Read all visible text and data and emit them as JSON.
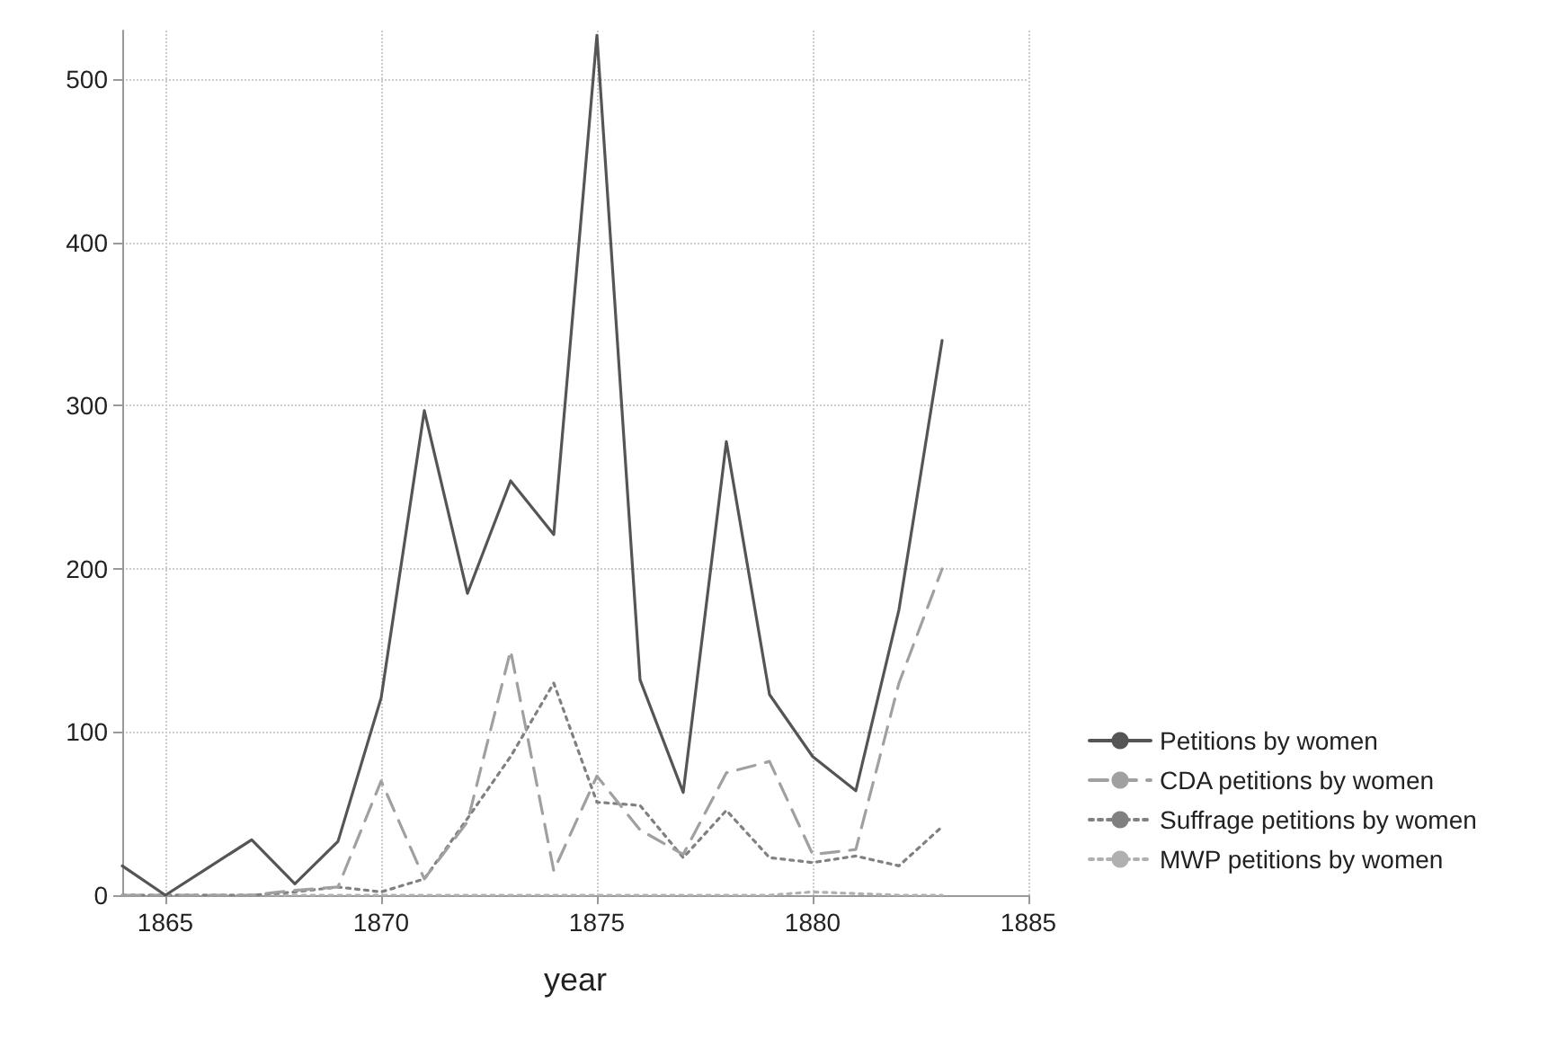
{
  "chart_data": {
    "type": "line",
    "xlabel": "year",
    "x": [
      1864,
      1865,
      1866,
      1867,
      1868,
      1869,
      1870,
      1871,
      1872,
      1873,
      1874,
      1875,
      1876,
      1877,
      1878,
      1879,
      1880,
      1881,
      1882,
      1883
    ],
    "series": [
      {
        "name": "Petitions by women",
        "color": "#555555",
        "line_style": "solid",
        "values": [
          18,
          0,
          17,
          34,
          7,
          33,
          121,
          297,
          185,
          254,
          221,
          527,
          132,
          63,
          278,
          123,
          85,
          64,
          175,
          340
        ]
      },
      {
        "name": "CDA petitions by women",
        "color": "#a0a0a0",
        "line_style": "dashed",
        "values": [
          0,
          0,
          0,
          0,
          3,
          5,
          70,
          10,
          45,
          150,
          15,
          73,
          40,
          25,
          75,
          82,
          25,
          28,
          130,
          200
        ]
      },
      {
        "name": "Suffrage petitions by women",
        "color": "#808080",
        "line_style": "dotted",
        "values": [
          0,
          0,
          0,
          0,
          2,
          5,
          2,
          10,
          47,
          85,
          130,
          57,
          55,
          23,
          52,
          23,
          20,
          24,
          18,
          42
        ]
      },
      {
        "name": "MWP petitions by women",
        "color": "#b0b0b0",
        "line_style": "dotted",
        "values": [
          0,
          0,
          0,
          0,
          0,
          0,
          0,
          0,
          0,
          0,
          0,
          0,
          0,
          0,
          0,
          0,
          2,
          1,
          0,
          0
        ]
      }
    ],
    "xlim": [
      1864,
      1885
    ],
    "xticks": [
      1865,
      1870,
      1875,
      1880,
      1885
    ],
    "ylim": [
      0,
      530
    ],
    "yticks": [
      0,
      100,
      200,
      300,
      400,
      500
    ],
    "grid": true,
    "legend": "right",
    "marker": "none"
  }
}
